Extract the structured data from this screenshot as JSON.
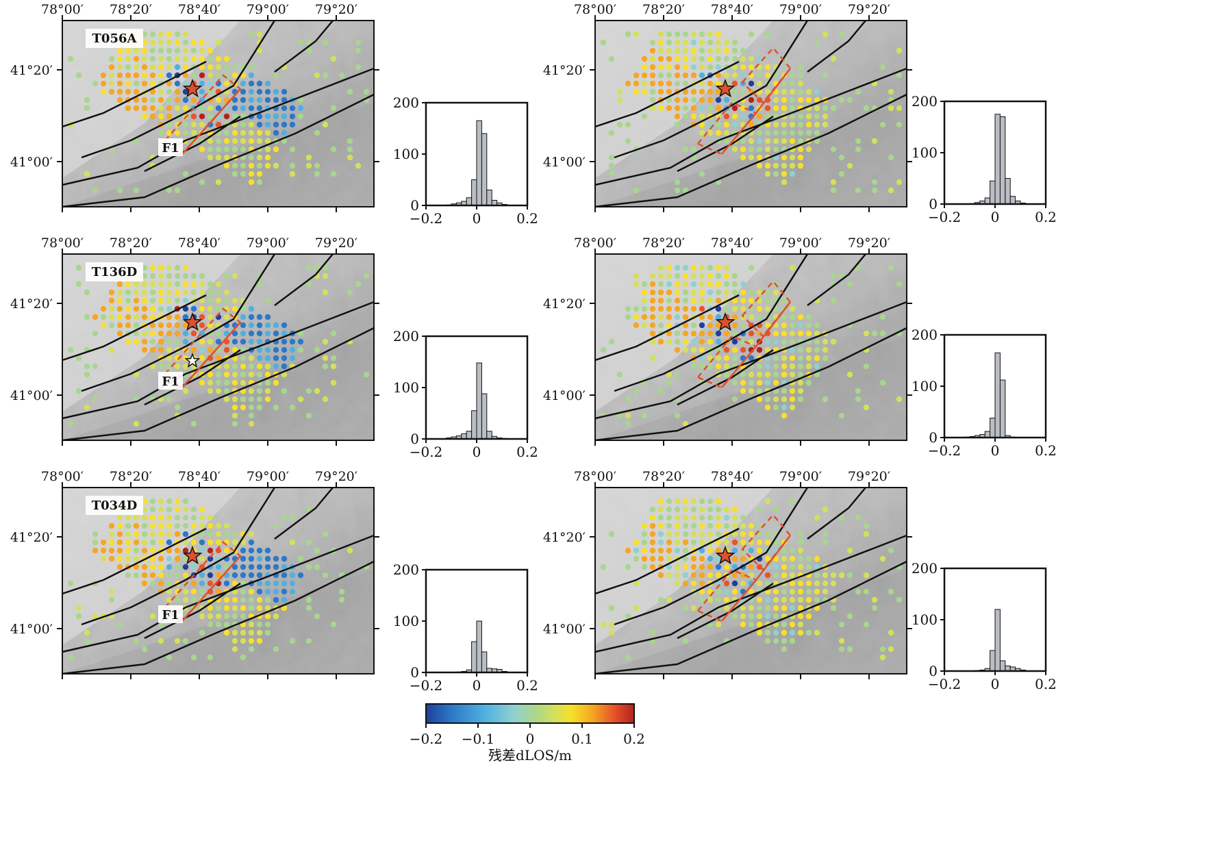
{
  "colors": {
    "fault": "#111111",
    "rupture": "#e0502c",
    "star": "#e0502c",
    "histogram_bar": "#b9bec4",
    "colormap": [
      "#1f3f9b",
      "#2b78c8",
      "#4fb0e0",
      "#8fd0d0",
      "#a8d68f",
      "#d5e05a",
      "#f7e02a",
      "#f5a623",
      "#e8552a",
      "#b3221e"
    ]
  },
  "axis_labels": {
    "lon_ticks": [
      "78°00′",
      "78°20′",
      "78°40′",
      "79°00′",
      "79°20′"
    ],
    "lat_ticks": [
      "41°20′",
      "41°00′"
    ]
  },
  "panels": [
    {
      "id": "T056A",
      "name": "T056A",
      "fault_label": "F1",
      "second_star": false,
      "rupture": "single",
      "hist": {
        "ticks_y": [
          "200",
          "100",
          "0"
        ],
        "ticks_x": [
          "−0.2",
          "0",
          "0.2"
        ],
        "ylim": [
          0,
          200
        ],
        "xlim": [
          -0.2,
          0.2
        ],
        "bins": [
          -0.2,
          -0.18,
          -0.16,
          -0.14,
          -0.12,
          -0.1,
          -0.08,
          -0.06,
          -0.04,
          -0.02,
          0,
          0.02,
          0.04,
          0.06,
          0.08,
          0.1,
          0.12,
          0.14,
          0.16,
          0.18,
          0.2
        ],
        "counts": [
          0,
          0,
          0,
          0,
          1,
          3,
          5,
          8,
          15,
          50,
          165,
          140,
          30,
          10,
          5,
          2,
          0,
          0,
          0,
          0
        ]
      }
    },
    {
      "id": "T056A-model",
      "name": "",
      "fault_label": "",
      "second_star": false,
      "rupture": "segmented",
      "hist": {
        "ticks_y": [
          "200",
          "100",
          "0"
        ],
        "ticks_x": [
          "−0.2",
          "0",
          "0.2"
        ],
        "ylim": [
          0,
          200
        ],
        "xlim": [
          -0.2,
          0.2
        ],
        "bins": [
          -0.2,
          -0.18,
          -0.16,
          -0.14,
          -0.12,
          -0.1,
          -0.08,
          -0.06,
          -0.04,
          -0.02,
          0,
          0.02,
          0.04,
          0.06,
          0.08,
          0.1,
          0.12,
          0.14,
          0.16,
          0.18,
          0.2
        ],
        "counts": [
          0,
          0,
          0,
          0,
          0,
          1,
          3,
          6,
          12,
          45,
          175,
          170,
          50,
          15,
          6,
          2,
          0,
          0,
          0,
          0
        ]
      }
    },
    {
      "id": "T136D",
      "name": "T136D",
      "fault_label": "F1",
      "second_star": true,
      "rupture": "single",
      "hist": {
        "ticks_y": [
          "200",
          "100",
          "0"
        ],
        "ticks_x": [
          "−0.2",
          "0",
          "0.2"
        ],
        "ylim": [
          0,
          200
        ],
        "xlim": [
          -0.2,
          0.2
        ],
        "bins": [
          -0.2,
          -0.18,
          -0.16,
          -0.14,
          -0.12,
          -0.1,
          -0.08,
          -0.06,
          -0.04,
          -0.02,
          0,
          0.02,
          0.04,
          0.06,
          0.08,
          0.1,
          0.12,
          0.14,
          0.16,
          0.18,
          0.2
        ],
        "counts": [
          0,
          0,
          0,
          0,
          2,
          4,
          6,
          10,
          15,
          55,
          148,
          88,
          15,
          5,
          2,
          1,
          0,
          0,
          0,
          0
        ]
      }
    },
    {
      "id": "T136D-model",
      "name": "",
      "fault_label": "",
      "second_star": false,
      "rupture": "segmented",
      "hist": {
        "ticks_y": [
          "200",
          "100",
          "0"
        ],
        "ticks_x": [
          "−0.2",
          "0",
          "0.2"
        ],
        "ylim": [
          0,
          200
        ],
        "xlim": [
          -0.2,
          0.2
        ],
        "bins": [
          -0.2,
          -0.18,
          -0.16,
          -0.14,
          -0.12,
          -0.1,
          -0.08,
          -0.06,
          -0.04,
          -0.02,
          0,
          0.02,
          0.04,
          0.06,
          0.08,
          0.1,
          0.12,
          0.14,
          0.16,
          0.18,
          0.2
        ],
        "counts": [
          0,
          0,
          0,
          0,
          1,
          2,
          4,
          6,
          12,
          38,
          165,
          112,
          4,
          1,
          0,
          0,
          0,
          0,
          0,
          0
        ]
      }
    },
    {
      "id": "T034D",
      "name": "T034D",
      "fault_label": "F1",
      "second_star": false,
      "rupture": "single",
      "hist": {
        "ticks_y": [
          "200",
          "100",
          "0"
        ],
        "ticks_x": [
          "−0.2",
          "0",
          "0.2"
        ],
        "ylim": [
          0,
          200
        ],
        "xlim": [
          -0.2,
          0.2
        ],
        "bins": [
          -0.2,
          -0.18,
          -0.16,
          -0.14,
          -0.12,
          -0.1,
          -0.08,
          -0.06,
          -0.04,
          -0.02,
          0,
          0.02,
          0.04,
          0.06,
          0.08,
          0.1,
          0.12,
          0.14,
          0.16,
          0.18,
          0.2
        ],
        "counts": [
          0,
          0,
          0,
          0,
          0,
          0,
          1,
          2,
          5,
          60,
          100,
          40,
          8,
          7,
          6,
          2,
          0,
          0,
          0,
          0
        ]
      }
    },
    {
      "id": "T034D-model",
      "name": "",
      "fault_label": "",
      "second_star": false,
      "rupture": "segmented",
      "hist": {
        "ticks_y": [
          "200",
          "100",
          "0"
        ],
        "ticks_x": [
          "−0.2",
          "0",
          "0.2"
        ],
        "ylim": [
          0,
          200
        ],
        "xlim": [
          -0.2,
          0.2
        ],
        "bins": [
          -0.2,
          -0.18,
          -0.16,
          -0.14,
          -0.12,
          -0.1,
          -0.08,
          -0.06,
          -0.04,
          -0.02,
          0,
          0.02,
          0.04,
          0.06,
          0.08,
          0.1,
          0.12,
          0.14,
          0.16,
          0.18,
          0.2
        ],
        "counts": [
          0,
          0,
          0,
          0,
          0,
          0,
          1,
          2,
          5,
          40,
          120,
          20,
          10,
          8,
          5,
          2,
          0,
          0,
          0,
          0
        ]
      }
    }
  ],
  "colorbar": {
    "ticks": [
      "−0.2",
      "−0.1",
      "0",
      "0.1",
      "0.2"
    ],
    "label": "残差dLOS/m",
    "range": [
      -0.2,
      0.2
    ]
  }
}
